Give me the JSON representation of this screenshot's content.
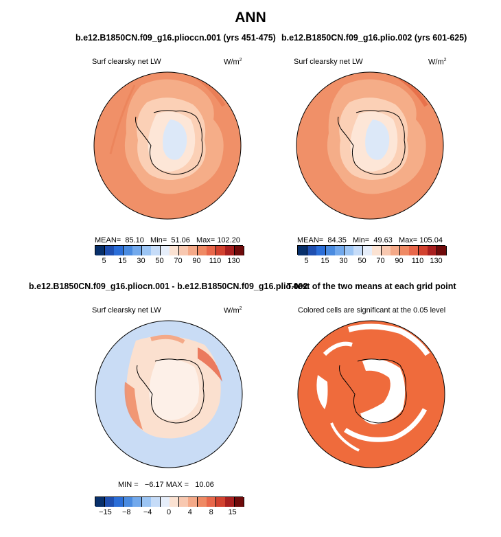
{
  "title": "ANN",
  "panels": [
    {
      "case_title": "b.e12.B1850CN.f09_g16.plioccn.001 (yrs 451-475)",
      "variable": "Surf clearsky net LW",
      "units_base": "W/m",
      "units_exp": "2",
      "stats": {
        "mean_label": "MEAN=",
        "mean": "85.10",
        "min_label": "Min=",
        "min": "51.06",
        "max_label": "Max=",
        "max": "102.20"
      },
      "colorbar": {
        "colors": [
          "#08306b",
          "#1f4fb0",
          "#2b6ed8",
          "#4a8be0",
          "#72a9ec",
          "#9cc5f4",
          "#c6dcf8",
          "#e6eefa",
          "#fbe2d2",
          "#f8c8b0",
          "#f4a988",
          "#ef8a64",
          "#e8674a",
          "#d2422f",
          "#a81f1f",
          "#6f0b0b"
        ],
        "tick_labels": [
          "5",
          "15",
          "30",
          "50",
          "70",
          "90",
          "110",
          "130"
        ]
      }
    },
    {
      "case_title": "b.e12.B1850CN.f09_g16.plio.002 (yrs 601-625)",
      "variable": "Surf clearsky net LW",
      "units_base": "W/m",
      "units_exp": "2",
      "stats": {
        "mean_label": "MEAN=",
        "mean": "84.35",
        "min_label": "Min=",
        "min": "49.63",
        "max_label": "Max=",
        "max": "105.04"
      },
      "colorbar": {
        "colors": [
          "#08306b",
          "#1f4fb0",
          "#2b6ed8",
          "#4a8be0",
          "#72a9ec",
          "#9cc5f4",
          "#c6dcf8",
          "#e6eefa",
          "#fbe2d2",
          "#f8c8b0",
          "#f4a988",
          "#ef8a64",
          "#e8674a",
          "#d2422f",
          "#a81f1f",
          "#6f0b0b"
        ],
        "tick_labels": [
          "5",
          "15",
          "30",
          "50",
          "70",
          "90",
          "110",
          "130"
        ]
      }
    },
    {
      "case_title": "b.e12.B1850CN.f09_g16.pliocn.001 - b.e12.B1850CN.f09_g16.plio.002",
      "variable": "Surf clearsky net LW",
      "units_base": "W/m",
      "units_exp": "2",
      "stats": {
        "min_label": "MIN =",
        "min": "−6.17",
        "max_label": "MAX =",
        "max": "10.06"
      },
      "colorbar": {
        "colors": [
          "#08306b",
          "#1f4fb0",
          "#2b6ed8",
          "#4a8be0",
          "#72a9ec",
          "#9cc5f4",
          "#c6dcf8",
          "#e6eefa",
          "#fbe2d2",
          "#f8c8b0",
          "#f4a988",
          "#ef8a64",
          "#e8674a",
          "#d2422f",
          "#a81f1f",
          "#6f0b0b"
        ],
        "tick_labels": [
          "−15",
          "−8",
          "−4",
          "0",
          "4",
          "8",
          "15"
        ]
      }
    },
    {
      "case_title": "T-test of the two means at each grid point",
      "subtitle": "Colored cells are significant at the 0.05 level"
    }
  ],
  "colors": {
    "ocean_orange": "#f09068",
    "light_orange": "#f7bc9c",
    "pale": "#fde3d2",
    "pale_blue": "#dce8f8",
    "diff_blue": "#c9dcf5",
    "diff_pale": "#fbe0cf",
    "ttest": "#ef6b3c"
  }
}
